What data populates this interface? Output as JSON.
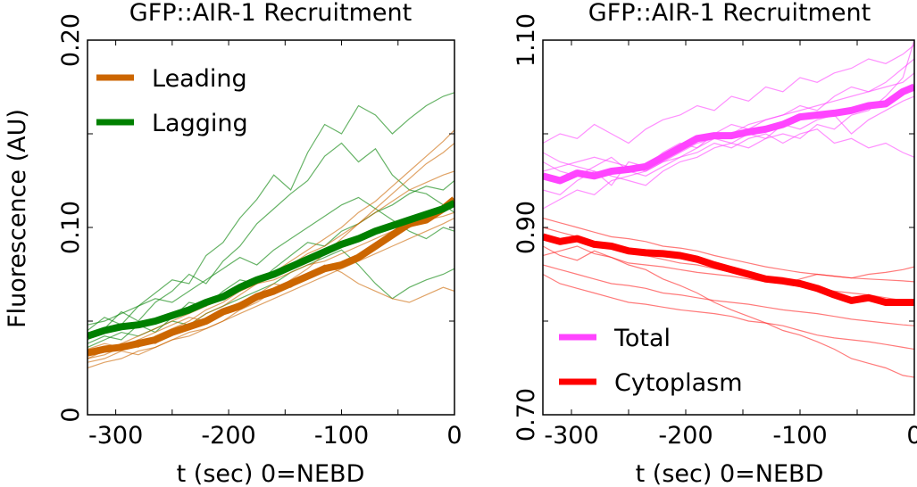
{
  "chart_data": [
    {
      "type": "line",
      "title": "GFP::AIR-1 Recruitment",
      "xlabel": "t (sec) 0=NEBD",
      "ylabel": "Fluorescence (AU)",
      "xlim": [
        -325,
        0
      ],
      "ylim": [
        0,
        0.2
      ],
      "xticks": [
        -300,
        -200,
        -100,
        0
      ],
      "xtick_labels": [
        "-300",
        "-200",
        "-100",
        "0"
      ],
      "yticks": [
        0,
        0.1,
        0.2
      ],
      "ytick_labels": [
        "0",
        "0.10",
        "0.20"
      ],
      "legend_position": "top-left",
      "grid": false,
      "x": [
        -325,
        -310,
        -295,
        -280,
        -265,
        -250,
        -235,
        -220,
        -205,
        -190,
        -175,
        -160,
        -145,
        -130,
        -115,
        -100,
        -85,
        -70,
        -55,
        -40,
        -25,
        -10,
        0
      ],
      "series": [
        {
          "name": "Leading",
          "color": "#cc6600",
          "values": [
            0.033,
            0.035,
            0.036,
            0.038,
            0.04,
            0.044,
            0.047,
            0.05,
            0.055,
            0.058,
            0.063,
            0.066,
            0.07,
            0.074,
            0.078,
            0.08,
            0.084,
            0.09,
            0.096,
            0.102,
            0.104,
            0.11,
            0.115
          ]
        },
        {
          "name": "Lagging",
          "color": "#008000",
          "values": [
            0.042,
            0.045,
            0.047,
            0.048,
            0.05,
            0.053,
            0.056,
            0.06,
            0.063,
            0.068,
            0.072,
            0.075,
            0.079,
            0.083,
            0.087,
            0.091,
            0.094,
            0.098,
            0.101,
            0.104,
            0.107,
            0.11,
            0.113
          ]
        }
      ],
      "individual_traces": [
        {
          "color": "#008000",
          "values": [
            0.045,
            0.052,
            0.048,
            0.058,
            0.065,
            0.072,
            0.07,
            0.085,
            0.092,
            0.105,
            0.115,
            0.128,
            0.12,
            0.14,
            0.155,
            0.15,
            0.165,
            0.16,
            0.15,
            0.158,
            0.165,
            0.17,
            0.172
          ]
        },
        {
          "color": "#008000",
          "values": [
            0.04,
            0.046,
            0.055,
            0.05,
            0.06,
            0.066,
            0.075,
            0.07,
            0.082,
            0.09,
            0.102,
            0.11,
            0.118,
            0.125,
            0.138,
            0.145,
            0.135,
            0.142,
            0.128,
            0.12,
            0.118,
            0.112,
            0.108
          ]
        },
        {
          "color": "#008000",
          "values": [
            0.038,
            0.042,
            0.04,
            0.048,
            0.044,
            0.052,
            0.06,
            0.058,
            0.066,
            0.072,
            0.07,
            0.078,
            0.085,
            0.092,
            0.09,
            0.098,
            0.102,
            0.108,
            0.112,
            0.118,
            0.122,
            0.12,
            0.125
          ]
        },
        {
          "color": "#008000",
          "values": [
            0.036,
            0.04,
            0.044,
            0.042,
            0.046,
            0.05,
            0.048,
            0.054,
            0.058,
            0.062,
            0.066,
            0.07,
            0.076,
            0.08,
            0.084,
            0.088,
            0.08,
            0.07,
            0.062,
            0.068,
            0.072,
            0.075,
            0.078
          ]
        },
        {
          "color": "#008000",
          "values": [
            0.048,
            0.05,
            0.054,
            0.058,
            0.062,
            0.06,
            0.066,
            0.072,
            0.078,
            0.084,
            0.08,
            0.088,
            0.094,
            0.1,
            0.106,
            0.112,
            0.116,
            0.11,
            0.104,
            0.098,
            0.094,
            0.1,
            0.098
          ]
        },
        {
          "color": "#cc6600",
          "values": [
            0.028,
            0.03,
            0.034,
            0.032,
            0.036,
            0.04,
            0.044,
            0.046,
            0.05,
            0.056,
            0.06,
            0.066,
            0.072,
            0.078,
            0.086,
            0.094,
            0.102,
            0.11,
            0.118,
            0.126,
            0.134,
            0.14,
            0.145
          ]
        },
        {
          "color": "#cc6600",
          "values": [
            0.03,
            0.034,
            0.038,
            0.036,
            0.042,
            0.046,
            0.05,
            0.056,
            0.06,
            0.066,
            0.07,
            0.074,
            0.08,
            0.086,
            0.09,
            0.096,
            0.102,
            0.108,
            0.114,
            0.12,
            0.124,
            0.128,
            0.13
          ]
        },
        {
          "color": "#cc6600",
          "values": [
            0.025,
            0.028,
            0.03,
            0.034,
            0.036,
            0.04,
            0.042,
            0.046,
            0.05,
            0.054,
            0.058,
            0.062,
            0.066,
            0.07,
            0.074,
            0.078,
            0.082,
            0.086,
            0.09,
            0.094,
            0.098,
            0.102,
            0.105
          ]
        },
        {
          "color": "#cc6600",
          "values": [
            0.035,
            0.038,
            0.036,
            0.04,
            0.044,
            0.048,
            0.052,
            0.05,
            0.056,
            0.06,
            0.064,
            0.07,
            0.068,
            0.074,
            0.08,
            0.076,
            0.07,
            0.066,
            0.062,
            0.06,
            0.064,
            0.068,
            0.066
          ]
        },
        {
          "color": "#cc6600",
          "values": [
            0.03,
            0.032,
            0.036,
            0.04,
            0.038,
            0.044,
            0.048,
            0.054,
            0.058,
            0.064,
            0.07,
            0.076,
            0.082,
            0.088,
            0.094,
            0.1,
            0.108,
            0.114,
            0.122,
            0.13,
            0.138,
            0.146,
            0.152
          ]
        },
        {
          "color": "#cc6600",
          "values": [
            0.032,
            0.034,
            0.038,
            0.042,
            0.046,
            0.05,
            0.054,
            0.058,
            0.062,
            0.066,
            0.07,
            0.072,
            0.076,
            0.08,
            0.082,
            0.086,
            0.09,
            0.094,
            0.098,
            0.1,
            0.104,
            0.106,
            0.108
          ]
        }
      ]
    },
    {
      "type": "line",
      "title": "GFP::AIR-1 Recruitment",
      "xlabel": "t (sec) 0=NEBD",
      "ylabel": "",
      "xlim": [
        -325,
        0
      ],
      "ylim": [
        0.7,
        1.1
      ],
      "xticks": [
        -300,
        -200,
        -100,
        0
      ],
      "xtick_labels": [
        "-300",
        "-200",
        "-100",
        "0"
      ],
      "yticks": [
        0.7,
        0.9,
        1.1
      ],
      "ytick_labels": [
        "0.70",
        "0.90",
        "1.10"
      ],
      "legend_position": "bottom-left",
      "grid": false,
      "x": [
        -325,
        -310,
        -295,
        -280,
        -265,
        -250,
        -235,
        -220,
        -205,
        -190,
        -175,
        -160,
        -145,
        -130,
        -115,
        -100,
        -85,
        -70,
        -55,
        -40,
        -25,
        -10,
        0
      ],
      "series": [
        {
          "name": "Total",
          "color": "#ff44ff",
          "values": [
            0.955,
            0.95,
            0.958,
            0.955,
            0.96,
            0.962,
            0.965,
            0.975,
            0.985,
            0.995,
            0.998,
            0.998,
            1.002,
            1.005,
            1.01,
            1.018,
            1.02,
            1.022,
            1.025,
            1.03,
            1.032,
            1.045,
            1.05
          ]
        },
        {
          "name": "Cytoplasm",
          "color": "#ff0000",
          "values": [
            0.89,
            0.885,
            0.888,
            0.882,
            0.88,
            0.875,
            0.873,
            0.872,
            0.87,
            0.866,
            0.86,
            0.855,
            0.85,
            0.845,
            0.843,
            0.84,
            0.835,
            0.828,
            0.822,
            0.825,
            0.82,
            0.82,
            0.82
          ]
        }
      ],
      "individual_traces": [
        {
          "color": "#ff44ff",
          "values": [
            0.99,
            1.0,
            0.995,
            1.01,
            1.0,
            0.99,
            1.005,
            1.015,
            1.02,
            1.03,
            1.025,
            1.04,
            1.035,
            1.05,
            1.045,
            1.06,
            1.055,
            1.065,
            1.07,
            1.08,
            1.075,
            1.085,
            1.095
          ]
        },
        {
          "color": "#ff44ff",
          "values": [
            0.94,
            0.935,
            0.95,
            0.96,
            0.945,
            0.97,
            0.965,
            0.98,
            0.99,
            0.985,
            1.0,
            1.01,
            1.005,
            1.015,
            1.02,
            1.03,
            1.025,
            1.04,
            1.05,
            1.045,
            1.055,
            1.07,
            1.08
          ]
        },
        {
          "color": "#ff44ff",
          "values": [
            0.97,
            0.96,
            0.955,
            0.965,
            0.975,
            0.96,
            0.955,
            0.965,
            0.975,
            0.98,
            0.99,
            0.985,
            0.995,
            1.0,
            0.99,
            1.0,
            1.005,
            0.99,
            0.995,
            0.985,
            0.99,
            0.98,
            0.975
          ]
        },
        {
          "color": "#ff44ff",
          "values": [
            0.92,
            0.93,
            0.94,
            0.935,
            0.95,
            0.955,
            0.96,
            0.97,
            0.975,
            0.985,
            0.995,
            1.0,
            1.01,
            1.015,
            1.02,
            1.025,
            1.03,
            1.035,
            1.04,
            1.045,
            1.05,
            1.055,
            1.065
          ]
        },
        {
          "color": "#ff44ff",
          "values": [
            0.96,
            0.965,
            0.97,
            0.975,
            0.97,
            0.965,
            0.96,
            0.97,
            0.98,
            0.99,
            0.995,
            0.99,
            0.985,
            0.995,
            1.0,
            0.995,
            1.01,
            1.005,
            1.02,
            1.025,
            1.04,
            1.06,
            1.1
          ]
        },
        {
          "color": "#ff44ff",
          "values": [
            0.98,
            0.97,
            0.965,
            0.96,
            0.955,
            0.95,
            0.945,
            0.96,
            0.97,
            0.975,
            0.985,
            0.99,
            1.0,
            0.995,
            1.01,
            1.005,
            1.015,
            1.02,
            1.0,
            1.015,
            1.025,
            1.035,
            1.04
          ]
        },
        {
          "color": "#ff2222",
          "values": [
            0.88,
            0.87,
            0.865,
            0.875,
            0.868,
            0.86,
            0.855,
            0.845,
            0.838,
            0.83,
            0.82,
            0.812,
            0.805,
            0.798,
            0.79,
            0.785,
            0.778,
            0.77,
            0.76,
            0.755,
            0.75,
            0.742,
            0.74
          ]
        },
        {
          "color": "#ff2222",
          "values": [
            0.9,
            0.895,
            0.89,
            0.885,
            0.88,
            0.875,
            0.87,
            0.866,
            0.862,
            0.86,
            0.856,
            0.852,
            0.848,
            0.845,
            0.84,
            0.838,
            0.835,
            0.832,
            0.83,
            0.828,
            0.825,
            0.822,
            0.82
          ]
        },
        {
          "color": "#ff2222",
          "values": [
            0.85,
            0.84,
            0.835,
            0.83,
            0.825,
            0.82,
            0.818,
            0.815,
            0.812,
            0.81,
            0.808,
            0.805,
            0.8,
            0.798,
            0.795,
            0.79,
            0.785,
            0.782,
            0.78,
            0.778,
            0.775,
            0.772,
            0.77
          ]
        },
        {
          "color": "#ff2222",
          "values": [
            0.87,
            0.875,
            0.88,
            0.872,
            0.868,
            0.862,
            0.86,
            0.858,
            0.855,
            0.852,
            0.85,
            0.848,
            0.845,
            0.842,
            0.84,
            0.845,
            0.85,
            0.848,
            0.846,
            0.85,
            0.852,
            0.855,
            0.858
          ]
        },
        {
          "color": "#ff2222",
          "values": [
            0.91,
            0.905,
            0.9,
            0.895,
            0.89,
            0.888,
            0.885,
            0.88,
            0.878,
            0.875,
            0.87,
            0.866,
            0.862,
            0.858,
            0.855,
            0.852,
            0.85,
            0.848,
            0.846,
            0.845,
            0.844,
            0.843,
            0.842
          ]
        },
        {
          "color": "#ff2222",
          "values": [
            0.86,
            0.855,
            0.85,
            0.845,
            0.84,
            0.838,
            0.835,
            0.83,
            0.828,
            0.825,
            0.822,
            0.82,
            0.818,
            0.815,
            0.812,
            0.81,
            0.808,
            0.805,
            0.802,
            0.8,
            0.798,
            0.796,
            0.795
          ]
        }
      ]
    }
  ]
}
